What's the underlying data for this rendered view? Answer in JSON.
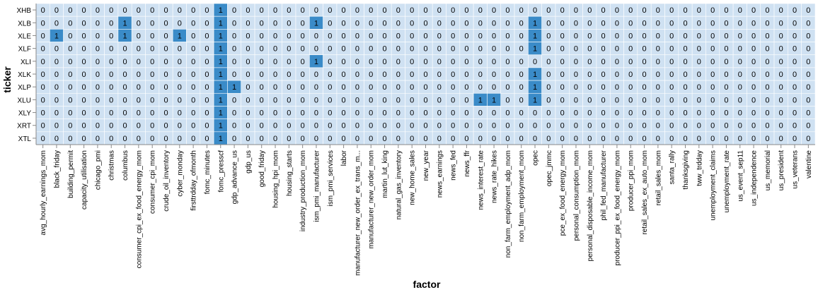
{
  "chart_data": {
    "type": "heatmap",
    "xlabel": "factor",
    "ylabel": "ticker",
    "rows": [
      "XHB",
      "XLB",
      "XLE",
      "XLF",
      "XLI",
      "XLK",
      "XLP",
      "XLU",
      "XLY",
      "XRT",
      "XTL"
    ],
    "columns": [
      "avg_hourly_earnings_mom",
      "black_friday",
      "building_permit",
      "capacity_utilisation",
      "chicago_pmi",
      "christmas",
      "columbus",
      "consumer_cpi_ex_food_energy_mom",
      "consumer_cpi_mom",
      "crude_oil_inventory",
      "cyber_monday",
      "firsttrdday_ofmonth",
      "fomc_minutes",
      "fomc_presscf",
      "gdp_advance_us",
      "gdp_us",
      "good_friday",
      "housing_hpi_mom",
      "housing_starts",
      "industry_production_mom",
      "ism_pmi_manufacturer",
      "ism_pmi_services",
      "labor",
      "manufacturer_new_order_ex_trans_m...",
      "manufacturer_new_order_mom",
      "martin_lut_king",
      "natural_gas_inventory",
      "new_home_sales",
      "new_year",
      "news_earnings",
      "news_fed",
      "news_ffr",
      "news_interest_rate",
      "news_rate_hikes",
      "non_farm_employment_adp_mom",
      "non_farm_employment_mom",
      "opec",
      "opec_jmmc",
      "pce_ex_food_energy_mom",
      "personal_consumption_mom",
      "personal_disposable_income_mom",
      "phil_fed_manufacturer",
      "producer_ppi_ex_food_energy_mom",
      "producer_ppi_mom",
      "retail_sales_ex_auto_mom",
      "retail_sales_mom",
      "santa_rally",
      "thanksgiving",
      "tww_trdday",
      "unemployment_claims",
      "unemployment_rate",
      "us_event_sep11",
      "us_independence",
      "us_memorial",
      "us_president",
      "us_veterans",
      "valentine"
    ],
    "values": [
      [
        0,
        0,
        0,
        0,
        0,
        0,
        0,
        0,
        0,
        0,
        0,
        0,
        0,
        1,
        0,
        0,
        0,
        0,
        0,
        0,
        0,
        0,
        0,
        0,
        0,
        0,
        0,
        0,
        0,
        0,
        0,
        0,
        0,
        0,
        0,
        0,
        0,
        0,
        0,
        0,
        0,
        0,
        0,
        0,
        0,
        0,
        0,
        0,
        0,
        0,
        0,
        0,
        0,
        0,
        0,
        0,
        0
      ],
      [
        0,
        0,
        0,
        0,
        0,
        0,
        1,
        0,
        0,
        0,
        0,
        0,
        0,
        1,
        0,
        0,
        0,
        0,
        0,
        0,
        1,
        0,
        0,
        0,
        0,
        0,
        0,
        0,
        0,
        0,
        0,
        0,
        0,
        0,
        0,
        0,
        1,
        0,
        0,
        0,
        0,
        0,
        0,
        0,
        0,
        0,
        0,
        0,
        0,
        0,
        0,
        0,
        0,
        0,
        0,
        0,
        0
      ],
      [
        0,
        1,
        0,
        0,
        0,
        0,
        1,
        0,
        0,
        0,
        1,
        0,
        0,
        1,
        0,
        0,
        0,
        0,
        0,
        0,
        0,
        0,
        0,
        0,
        0,
        0,
        0,
        0,
        0,
        0,
        0,
        0,
        0,
        0,
        0,
        0,
        1,
        0,
        0,
        0,
        0,
        0,
        0,
        0,
        0,
        0,
        0,
        0,
        0,
        0,
        0,
        0,
        0,
        0,
        0,
        0,
        0
      ],
      [
        0,
        0,
        0,
        0,
        0,
        0,
        0,
        0,
        0,
        0,
        0,
        0,
        0,
        1,
        0,
        0,
        0,
        0,
        0,
        0,
        0,
        0,
        0,
        0,
        0,
        0,
        0,
        0,
        0,
        0,
        0,
        0,
        0,
        0,
        0,
        0,
        1,
        0,
        0,
        0,
        0,
        0,
        0,
        0,
        0,
        0,
        0,
        0,
        0,
        0,
        0,
        0,
        0,
        0,
        0,
        0,
        0
      ],
      [
        0,
        0,
        0,
        0,
        0,
        0,
        0,
        0,
        0,
        0,
        0,
        0,
        0,
        1,
        0,
        0,
        0,
        0,
        0,
        0,
        1,
        0,
        0,
        0,
        0,
        0,
        0,
        0,
        0,
        0,
        0,
        0,
        0,
        0,
        0,
        0,
        0,
        0,
        0,
        0,
        0,
        0,
        0,
        0,
        0,
        0,
        0,
        0,
        0,
        0,
        0,
        0,
        0,
        0,
        0,
        0,
        0
      ],
      [
        0,
        0,
        0,
        0,
        0,
        0,
        0,
        0,
        0,
        0,
        0,
        0,
        0,
        1,
        0,
        0,
        0,
        0,
        0,
        0,
        0,
        0,
        0,
        0,
        0,
        0,
        0,
        0,
        0,
        0,
        0,
        0,
        0,
        0,
        0,
        0,
        1,
        0,
        0,
        0,
        0,
        0,
        0,
        0,
        0,
        0,
        0,
        0,
        0,
        0,
        0,
        0,
        0,
        0,
        0,
        0,
        0
      ],
      [
        0,
        0,
        0,
        0,
        0,
        0,
        0,
        0,
        0,
        0,
        0,
        0,
        0,
        1,
        1,
        0,
        0,
        0,
        0,
        0,
        0,
        0,
        0,
        0,
        0,
        0,
        0,
        0,
        0,
        0,
        0,
        0,
        0,
        0,
        0,
        0,
        1,
        0,
        0,
        0,
        0,
        0,
        0,
        0,
        0,
        0,
        0,
        0,
        0,
        0,
        0,
        0,
        0,
        0,
        0,
        0,
        0
      ],
      [
        0,
        0,
        0,
        0,
        0,
        0,
        0,
        0,
        0,
        0,
        0,
        0,
        0,
        1,
        0,
        0,
        0,
        0,
        0,
        0,
        0,
        0,
        0,
        0,
        0,
        0,
        0,
        0,
        0,
        0,
        0,
        0,
        1,
        1,
        0,
        0,
        1,
        0,
        0,
        0,
        0,
        0,
        0,
        0,
        0,
        0,
        0,
        0,
        0,
        0,
        0,
        0,
        0,
        0,
        0,
        0,
        0
      ],
      [
        0,
        0,
        0,
        0,
        0,
        0,
        0,
        0,
        0,
        0,
        0,
        0,
        0,
        1,
        0,
        0,
        0,
        0,
        0,
        0,
        0,
        0,
        0,
        0,
        0,
        0,
        0,
        0,
        0,
        0,
        0,
        0,
        0,
        0,
        0,
        0,
        0,
        0,
        0,
        0,
        0,
        0,
        0,
        0,
        0,
        0,
        0,
        0,
        0,
        0,
        0,
        0,
        0,
        0,
        0,
        0,
        0
      ],
      [
        0,
        0,
        0,
        0,
        0,
        0,
        0,
        0,
        0,
        0,
        0,
        0,
        0,
        1,
        0,
        0,
        0,
        0,
        0,
        0,
        0,
        0,
        0,
        0,
        0,
        0,
        0,
        0,
        0,
        0,
        0,
        0,
        0,
        0,
        0,
        0,
        0,
        0,
        0,
        0,
        0,
        0,
        0,
        0,
        0,
        0,
        0,
        0,
        0,
        0,
        0,
        0,
        0,
        0,
        0,
        0,
        0
      ],
      [
        0,
        0,
        0,
        0,
        0,
        0,
        0,
        0,
        0,
        0,
        0,
        0,
        0,
        1,
        0,
        0,
        0,
        0,
        0,
        0,
        0,
        0,
        0,
        0,
        0,
        0,
        0,
        0,
        0,
        0,
        0,
        0,
        0,
        0,
        0,
        0,
        0,
        0,
        0,
        0,
        0,
        0,
        0,
        0,
        0,
        0,
        0,
        0,
        0,
        0,
        0,
        0,
        0,
        0,
        0,
        0,
        0
      ]
    ],
    "color_low": "#cfe1f2",
    "color_high": "#3a8bc8",
    "grid": false,
    "legend": "none"
  }
}
